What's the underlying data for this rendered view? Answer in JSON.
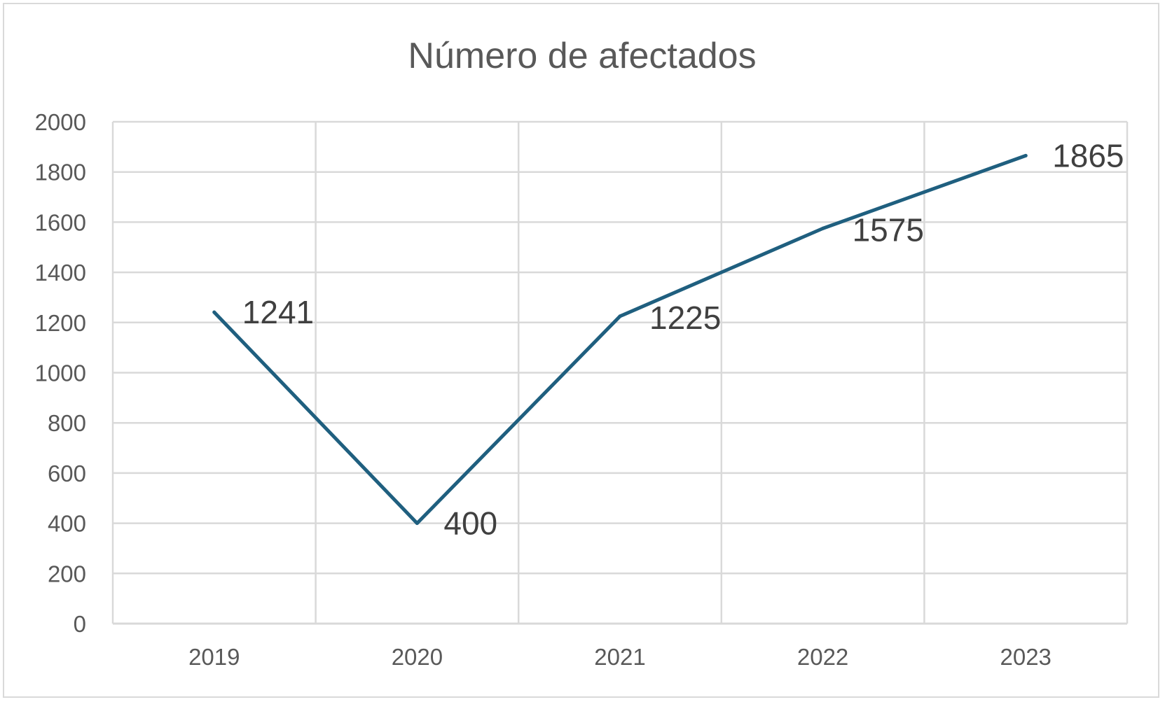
{
  "chart_data": {
    "type": "line",
    "title": "Número de afectados",
    "xlabel": "",
    "ylabel": "",
    "categories": [
      "2019",
      "2020",
      "2021",
      "2022",
      "2023"
    ],
    "series": [
      {
        "values": [
          1241,
          400,
          1225,
          1575,
          1865
        ],
        "color": "#1f5f7f",
        "data_labels": [
          "1241",
          "400",
          "1225",
          "1575",
          "1865"
        ]
      }
    ],
    "ylim": [
      0,
      2000
    ],
    "yticks": [
      "0",
      "200",
      "400",
      "600",
      "800",
      "1000",
      "1200",
      "1400",
      "1600",
      "1800",
      "2000"
    ],
    "grid": true,
    "vertical_grid": true,
    "legend": "none"
  }
}
